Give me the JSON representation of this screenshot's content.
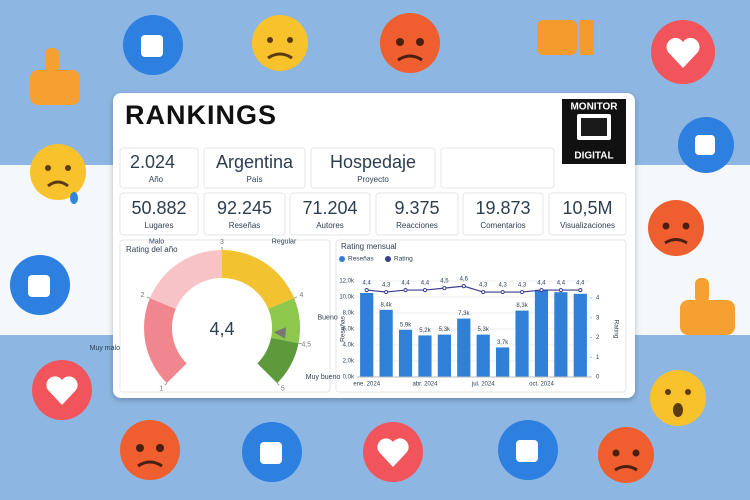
{
  "header": {
    "title": "RANKINGS",
    "logo_top": "MONITOR",
    "logo_bottom": "DIGITAL"
  },
  "kpis_top": [
    {
      "value": "2.024",
      "label": "Año"
    },
    {
      "value": "Argentina",
      "label": "País"
    },
    {
      "value": "Hospedaje",
      "label": "Proyecto"
    }
  ],
  "kpis": [
    {
      "value": "50.882",
      "label": "Lugares"
    },
    {
      "value": "92.245",
      "label": "Reseñas"
    },
    {
      "value": "71.204",
      "label": "Autores"
    },
    {
      "value": "9.375",
      "label": "Reacciones"
    },
    {
      "value": "19.873",
      "label": "Comentarios"
    },
    {
      "value": "10,5M",
      "label": "Visualizaciones"
    }
  ],
  "chart_data": [
    {
      "type": "gauge",
      "title": "Rating del año",
      "value": 4.4,
      "value_label": "4,4",
      "xlim": [
        1,
        5
      ],
      "xticks": [
        1,
        2,
        3,
        4,
        {
          "value": 4.5,
          "label": "4,5"
        },
        5
      ],
      "bands": [
        {
          "name": "Muy malo",
          "from": 1,
          "to": 2,
          "color": "#f0878f"
        },
        {
          "name": "Malo",
          "from": 2,
          "to": 3,
          "color": "#f7c3c6"
        },
        {
          "name": "Regular",
          "from": 3,
          "to": 4,
          "color": "#f2c230"
        },
        {
          "name": "Bueno",
          "from": 4,
          "to": 4.5,
          "color": "#8dc74c"
        },
        {
          "name": "Muy bueno",
          "from": 4.5,
          "to": 5,
          "color": "#5c9a3b"
        }
      ]
    },
    {
      "type": "bar-line",
      "title": "Rating mensual",
      "categories": [
        "ene. 2024",
        null,
        null,
        "abr. 2024",
        null,
        null,
        "jul. 2024",
        null,
        null,
        "oct. 2024",
        null,
        null
      ],
      "series": [
        {
          "name": "Reseñas",
          "color": "#2f80d6",
          "values": [
            10500,
            8400,
            5900,
            5200,
            5300,
            7300,
            5300,
            3700,
            8300,
            10900,
            10600,
            10400
          ],
          "value_labels": [
            null,
            "8,4k",
            "5,9k",
            "5,2k",
            "5,3k",
            "7,3k",
            "5,3k",
            "3,7k",
            "8,3k",
            null,
            null,
            null
          ]
        },
        {
          "name": "Rating",
          "color": "#3b3f8c",
          "axis": "y2",
          "values": [
            4.4,
            4.3,
            4.4,
            4.4,
            4.5,
            4.6,
            4.3,
            4.3,
            4.3,
            4.4,
            4.4,
            4.4
          ],
          "value_labels": [
            "4,4",
            "4,3",
            "4,4",
            "4,4",
            "4,5",
            "4,6",
            "4,3",
            "4,3",
            "4,3",
            "4,4",
            "4,4",
            "4,4"
          ]
        }
      ],
      "ylabel": "Reseñas",
      "y2label": "Rating",
      "ylim": [
        0,
        12000
      ],
      "yticks": [
        {
          "value": 0,
          "label": "0,0k"
        },
        {
          "value": 2000,
          "label": "2,0k"
        },
        {
          "value": 4000,
          "label": "4,0k"
        },
        {
          "value": 6000,
          "label": "6,0k"
        },
        {
          "value": 8000,
          "label": "8,0k"
        },
        {
          "value": 10000,
          "label": "10,0k"
        },
        {
          "value": 12000,
          "label": "12,0k"
        }
      ],
      "y2lim": [
        0,
        4.86
      ],
      "y2ticks": [
        0,
        1,
        2,
        3,
        4
      ]
    }
  ]
}
